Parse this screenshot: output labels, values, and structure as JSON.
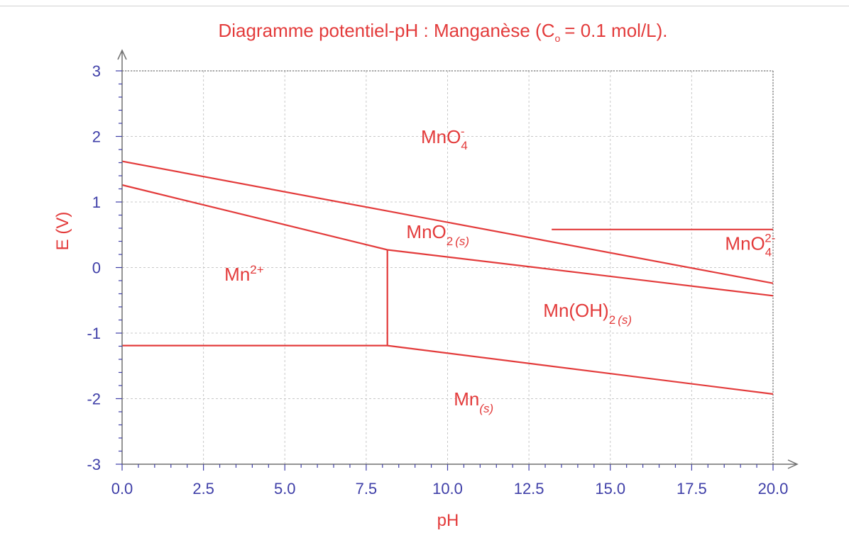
{
  "colors": {
    "text": "#e33b3b",
    "boundary": "#e33b3b",
    "ticks": "#3f3fa8",
    "axis": "#707070",
    "grid": "#c8c8c8"
  },
  "chart_data": {
    "type": "line",
    "title": {
      "main": "Diagramme potentiel-pH : Manganèse (C",
      "sub": "o",
      "rest": "= 0.1 mol/L)."
    },
    "xlabel": "pH",
    "ylabel": "E (V)",
    "xlim": [
      0,
      20
    ],
    "ylim": [
      -3,
      3
    ],
    "x_ticks": [
      "0.0",
      "2.5",
      "5.0",
      "7.5",
      "10.0",
      "12.5",
      "15.0",
      "17.5",
      "20.0"
    ],
    "y_ticks": [
      "3",
      "2",
      "1",
      "0",
      "-1",
      "-2",
      "-3"
    ],
    "grid": true,
    "series": [
      {
        "points": [
          [
            0,
            1.62
          ],
          [
            20,
            -0.24
          ]
        ]
      },
      {
        "points": [
          [
            13.2,
            0.58
          ],
          [
            20,
            0.58
          ]
        ]
      },
      {
        "points": [
          [
            0,
            1.26
          ],
          [
            8.15,
            0.27
          ]
        ]
      },
      {
        "points": [
          [
            8.15,
            0.27
          ],
          [
            20,
            -0.43
          ]
        ]
      },
      {
        "points": [
          [
            8.15,
            0.27
          ],
          [
            8.15,
            -1.19
          ]
        ]
      },
      {
        "points": [
          [
            0,
            -1.19
          ],
          [
            8.15,
            -1.19
          ]
        ]
      },
      {
        "points": [
          [
            8.15,
            -1.19
          ],
          [
            20,
            -1.93
          ]
        ]
      }
    ],
    "regions": [
      {
        "name": "MnO4-",
        "base": "MnO",
        "sub": "4",
        "sup": "-",
        "x": 9.9,
        "y": 1.9
      },
      {
        "name": "MnO2(s)",
        "base": "MnO",
        "sub": "2",
        "sub_italic": "(s)",
        "x": 9.7,
        "y": 0.45
      },
      {
        "name": "MnO4 2-",
        "base": "MnO",
        "sub": "4",
        "sup": "2-",
        "x": 19.3,
        "y": 0.27
      },
      {
        "name": "Mn2+",
        "base": "Mn",
        "sup": "2+",
        "x": 3.75,
        "y": -0.2
      },
      {
        "name": "Mn(OH)2(s)",
        "base": "Mn(OH)",
        "sub": "2",
        "sub_italic": "(s)",
        "x": 14.3,
        "y": -0.75
      },
      {
        "name": "Mn(s)",
        "base": "Mn",
        "sub_italic": "(s)",
        "x": 10.8,
        "y": -2.1
      }
    ]
  }
}
